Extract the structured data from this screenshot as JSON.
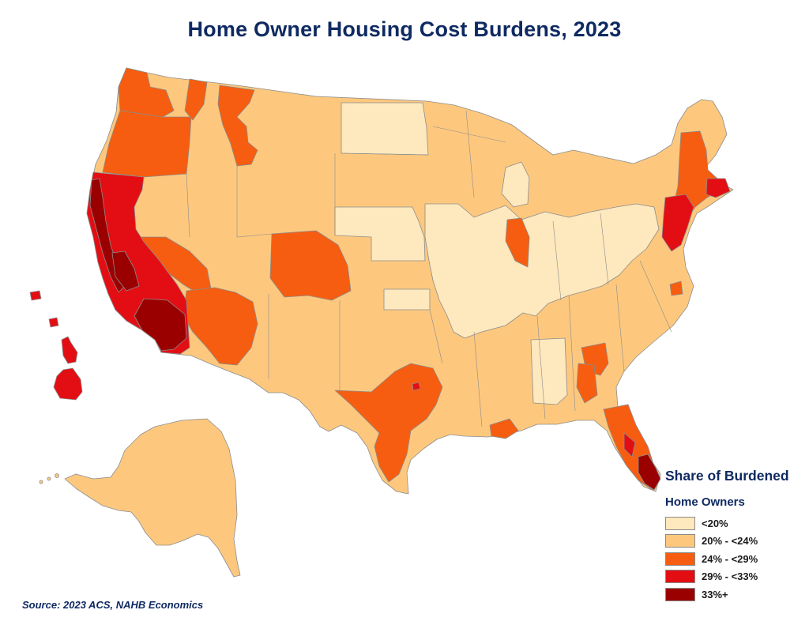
{
  "title": "Home Owner Housing Cost Burdens, 2023",
  "source": "Source: 2023 ACS, NAHB Economics",
  "legend": {
    "title": "Share of Burdened",
    "subtitle": "Home Owners",
    "items": [
      {
        "label": "<20%",
        "color": "#fee8bd"
      },
      {
        "label": "20% - <24%",
        "color": "#fdc87e"
      },
      {
        "label": "24% - <29%",
        "color": "#f65d10"
      },
      {
        "label": "29% - <33%",
        "color": "#e30e14"
      },
      {
        "label": "33%+",
        "color": "#9a0000"
      }
    ]
  },
  "colors": {
    "title": "#0f2a62",
    "border": "#8c8c8c",
    "lt20": "#fee8bd",
    "b20_24": "#fdc87e",
    "b24_29": "#f65d10",
    "b29_33": "#e30e14",
    "gt33": "#9a0000"
  }
}
